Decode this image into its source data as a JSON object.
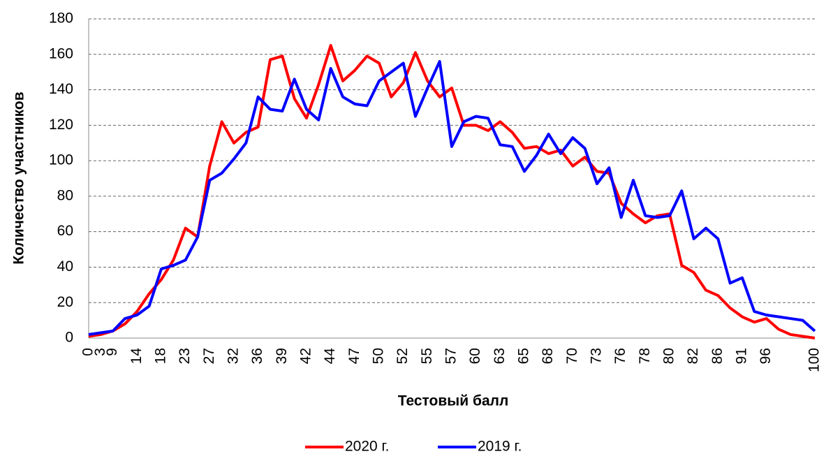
{
  "chart_data": {
    "type": "line",
    "x_label": "Тестовый балл",
    "y_label": "Количество участников",
    "categories": [
      "0",
      "3",
      "9",
      null,
      "14",
      null,
      "18",
      null,
      "23",
      null,
      "27",
      null,
      "32",
      null,
      "36",
      null,
      "39",
      null,
      "42",
      null,
      "44",
      null,
      "47",
      null,
      "50",
      null,
      "52",
      null,
      "55",
      null,
      "57",
      null,
      "60",
      null,
      "63",
      null,
      "65",
      null,
      "68",
      null,
      "70",
      null,
      "73",
      null,
      "76",
      null,
      "78",
      null,
      "80",
      null,
      "82",
      null,
      "86",
      null,
      "91",
      null,
      "96",
      null,
      null,
      null,
      "100"
    ],
    "series": [
      {
        "name": "2020 г.",
        "color": "#ff0000",
        "values": [
          1,
          2,
          4,
          8,
          15,
          25,
          33,
          44,
          62,
          57,
          97,
          122,
          110,
          116,
          119,
          157,
          159,
          135,
          124,
          143,
          165,
          145,
          151,
          159,
          155,
          136,
          144,
          161,
          145,
          136,
          141,
          120,
          120,
          117,
          122,
          116,
          107,
          108,
          104,
          106,
          97,
          102,
          94,
          93,
          76,
          70,
          65,
          69,
          70,
          41,
          37,
          27,
          24,
          17,
          12,
          9,
          11,
          5,
          2,
          1,
          0
        ]
      },
      {
        "name": "2019 г.",
        "color": "#0000ff",
        "values": [
          2,
          3,
          4,
          11,
          13,
          18,
          39,
          41,
          44,
          57,
          89,
          93,
          101,
          110,
          136,
          129,
          128,
          146,
          129,
          123,
          152,
          136,
          132,
          131,
          145,
          150,
          155,
          125,
          141,
          156,
          108,
          122,
          125,
          124,
          109,
          108,
          94,
          103,
          115,
          104,
          113,
          107,
          87,
          96,
          68,
          89,
          69,
          68,
          69,
          83,
          56,
          62,
          56,
          31,
          34,
          15,
          13,
          12,
          11,
          10,
          4
        ]
      }
    ],
    "ylim": [
      0,
      180
    ],
    "yticks": [
      0,
      20,
      40,
      60,
      80,
      100,
      120,
      140,
      160,
      180
    ],
    "grid": true,
    "legend": "bottom"
  }
}
